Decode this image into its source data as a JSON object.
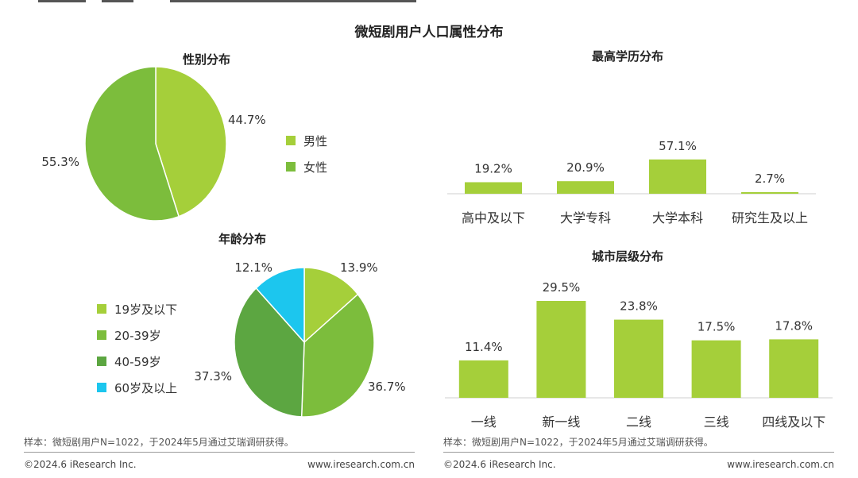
{
  "main_title": "微短剧用户人口属性分布",
  "colors": {
    "light_green": "#a5cf3a",
    "mid_green": "#7cbd3c",
    "dark_green": "#5ca641",
    "cyan": "#1cc6ee",
    "bar_green": "#a5cf3a"
  },
  "note_left": "样本：微短剧用户N=1022，于2024年5月通过艾瑞调研获得。",
  "note_right": "样本：微短剧用户N=1022，于2024年5月通过艾瑞调研获得。",
  "footer": {
    "copyright_left": "©2024.6 iResearch Inc.",
    "website_left": "www.iresearch.com.cn",
    "copyright_right": "©2024.6 iResearch Inc.",
    "website_right": "www.iresearch.com.cn"
  },
  "chart_data": [
    {
      "type": "pie",
      "title": "性别分布",
      "labels": [
        "男性",
        "女性"
      ],
      "values": [
        44.7,
        55.3
      ],
      "value_labels": [
        "44.7%",
        "55.3%"
      ],
      "legend": [
        "男性",
        "女性"
      ]
    },
    {
      "type": "pie",
      "title": "年龄分布",
      "labels": [
        "19岁及以下",
        "20-39岁",
        "40-59岁",
        "60岁及以上"
      ],
      "values": [
        13.9,
        36.7,
        37.3,
        12.1
      ],
      "value_labels": [
        "13.9%",
        "36.7%",
        "37.3%",
        "12.1%"
      ],
      "legend": [
        "19岁及以下",
        "20-39岁",
        "40-59岁",
        "60岁及以上"
      ]
    },
    {
      "type": "bar",
      "title": "最高学历分布",
      "categories": [
        "高中及以下",
        "大学专科",
        "大学本科",
        "研究生及以上"
      ],
      "values": [
        19.2,
        20.9,
        57.1,
        2.7
      ],
      "value_labels": [
        "19.2%",
        "20.9%",
        "57.1%",
        "2.7%"
      ],
      "ylim": [
        0,
        60
      ]
    },
    {
      "type": "bar",
      "title": "城市层级分布",
      "categories": [
        "一线",
        "新一线",
        "二线",
        "三线",
        "四线及以下"
      ],
      "values": [
        11.4,
        29.5,
        23.8,
        17.5,
        17.8
      ],
      "value_labels": [
        "11.4%",
        "29.5%",
        "23.8%",
        "17.5%",
        "17.8%"
      ],
      "ylim": [
        0,
        30
      ]
    }
  ]
}
